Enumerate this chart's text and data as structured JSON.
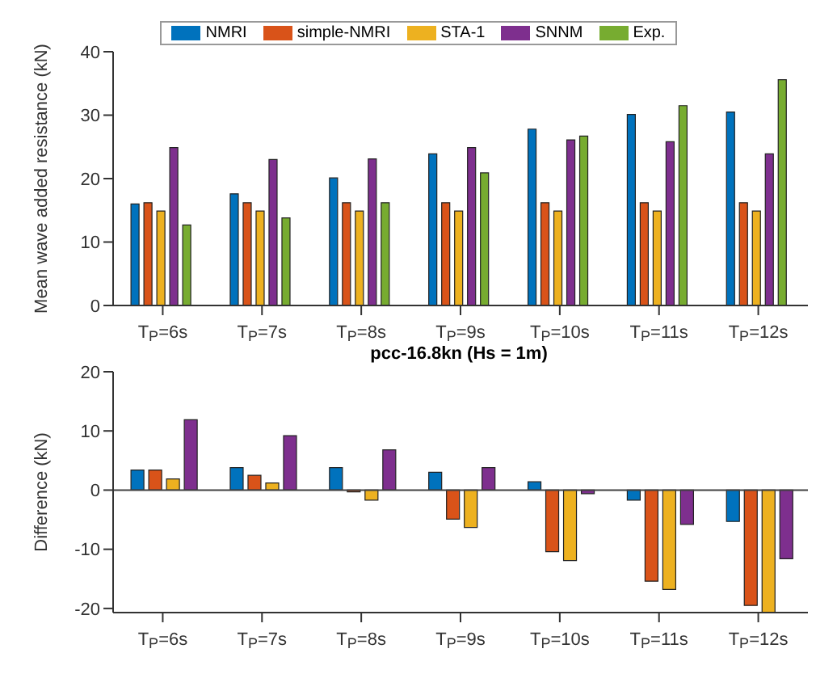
{
  "chart_data": [
    {
      "type": "bar",
      "categories": [
        "T$_{P}$=6s",
        "T$_{P}$=7s",
        "T$_{P}$=8s",
        "T$_{P}$=9s",
        "T$_{P}$=10s",
        "T$_{P}$=11s",
        "T$_{P}$=12s"
      ],
      "ylabel": "Mean wave added resistance (kN)",
      "ylim": [
        0,
        40
      ],
      "yticks": [
        0,
        10,
        20,
        30,
        40
      ],
      "legend": "top",
      "grid": false,
      "series": [
        {
          "name": "NMRI",
          "color": "#0072bd",
          "values": [
            16.0,
            17.6,
            20.1,
            23.9,
            27.8,
            30.1,
            30.5
          ]
        },
        {
          "name": "simple-NMRI",
          "color": "#d95319",
          "values": [
            16.2,
            16.2,
            16.2,
            16.2,
            16.2,
            16.2,
            16.2
          ]
        },
        {
          "name": "STA-1",
          "color": "#edb120",
          "values": [
            14.9,
            14.9,
            14.9,
            14.9,
            14.9,
            14.9,
            14.9
          ]
        },
        {
          "name": "SNNM",
          "color": "#7e2f8e",
          "values": [
            24.9,
            23.0,
            23.1,
            24.9,
            26.1,
            25.8,
            23.9
          ]
        },
        {
          "name": "Exp.",
          "color": "#77ac30",
          "values": [
            12.7,
            13.8,
            16.2,
            20.9,
            26.7,
            31.5,
            35.6
          ]
        }
      ]
    },
    {
      "type": "bar",
      "title": "pcc-16.8kn (Hs = 1m)",
      "categories": [
        "T$_{P}$=6s",
        "T$_{P}$=7s",
        "T$_{P}$=8s",
        "T$_{P}$=9s",
        "T$_{P}$=10s",
        "T$_{P}$=11s",
        "T$_{P}$=12s"
      ],
      "ylabel": "Difference (kN)",
      "ylim": [
        -20.7,
        20
      ],
      "yticks": [
        -20,
        -10,
        0,
        10,
        20
      ],
      "legend": false,
      "grid": false,
      "ref_lines": [
        {
          "axis": "y",
          "value": 0,
          "color": "#404040"
        }
      ],
      "series": [
        {
          "color": "#0072bd",
          "values": [
            3.4,
            3.8,
            3.8,
            3.0,
            1.4,
            -1.7,
            -5.3
          ]
        },
        {
          "color": "#d95319",
          "values": [
            3.4,
            2.5,
            -0.3,
            -4.9,
            -10.4,
            -15.4,
            -19.5
          ]
        },
        {
          "color": "#edb120",
          "values": [
            1.9,
            1.2,
            -1.7,
            -6.3,
            -11.9,
            -16.8,
            -20.7
          ]
        },
        {
          "color": "#7e2f8e",
          "values": [
            11.9,
            9.2,
            6.8,
            3.8,
            -0.6,
            -5.8,
            -11.6
          ]
        }
      ]
    }
  ]
}
